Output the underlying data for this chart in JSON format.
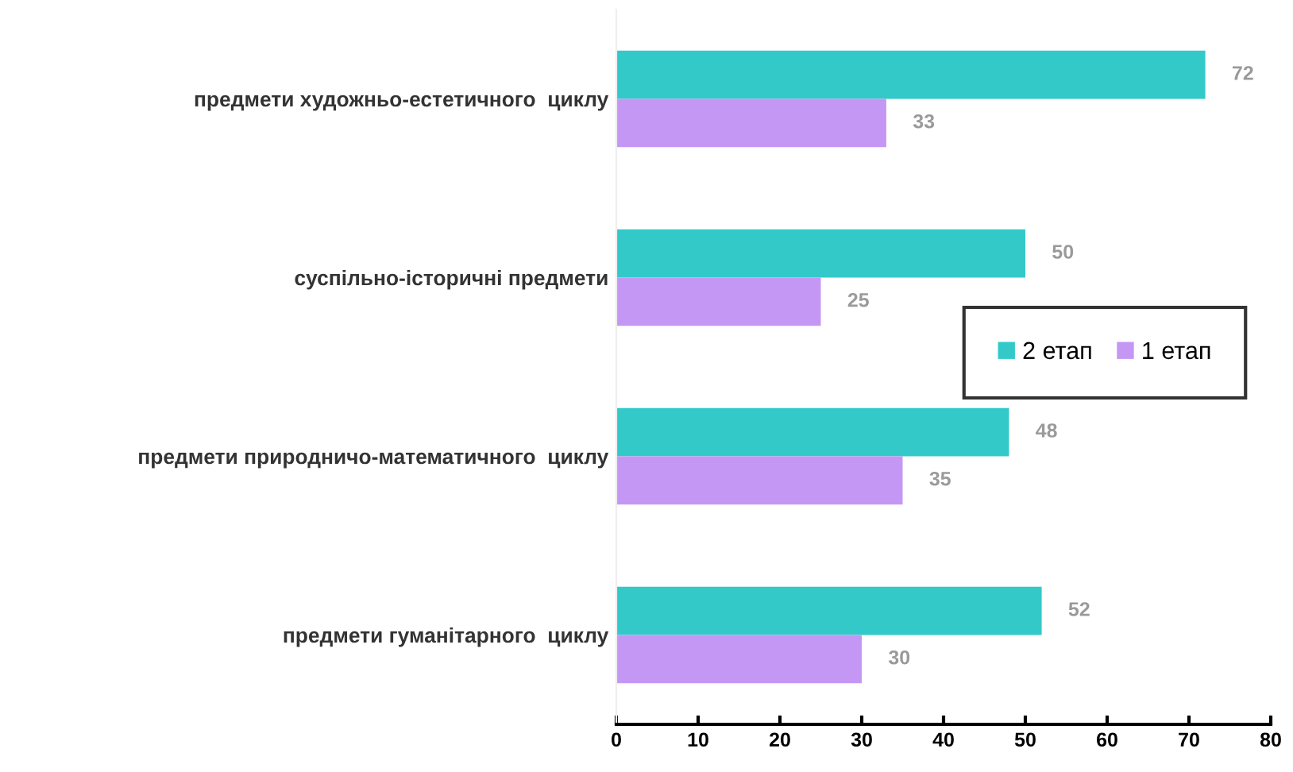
{
  "chart_data": {
    "type": "bar",
    "orientation": "horizontal",
    "categories": [
      "предмети художньо-естетичного  циклу",
      "суспільно-історичні предмети",
      "предмети природничо-математичного  циклу",
      "предмети гуманітарного  циклу"
    ],
    "series": [
      {
        "name": "2 етап",
        "color": "#33c9c9",
        "values": [
          72,
          50,
          48,
          52
        ]
      },
      {
        "name": "1 етап",
        "color": "#c597f5",
        "values": [
          33,
          25,
          35,
          30
        ]
      }
    ],
    "xlim": [
      0,
      80
    ],
    "xticks": [
      0,
      10,
      20,
      30,
      40,
      50,
      60,
      70,
      80
    ],
    "grid": false,
    "legend": "right",
    "data_labels": true
  }
}
